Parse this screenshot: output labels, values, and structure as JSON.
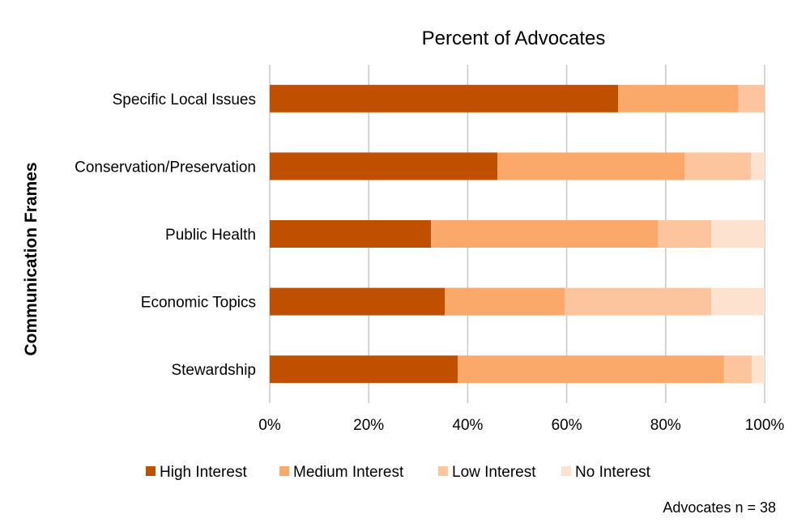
{
  "chart_data": {
    "type": "bar",
    "orientation": "horizontal",
    "stacked": true,
    "title": "Percent of Advocates",
    "xlabel": "",
    "ylabel": "Communication Frames",
    "xlim": [
      0,
      100
    ],
    "x_ticks": [
      "0%",
      "20%",
      "40%",
      "60%",
      "80%",
      "100%"
    ],
    "grid": true,
    "legend_position": "bottom",
    "categories": [
      "Specific Local Issues",
      "Conservation/Preservation",
      "Public Health",
      "Economic Topics",
      "Stewardship"
    ],
    "series": [
      {
        "name": "High Interest",
        "color": "#C05000",
        "values": [
          70.4,
          46.0,
          32.6,
          35.4,
          38.0
        ]
      },
      {
        "name": "Medium Interest",
        "color": "#FBA96A",
        "values": [
          24.2,
          37.8,
          45.8,
          24.2,
          53.8
        ]
      },
      {
        "name": "Low Interest",
        "color": "#FCC59E",
        "values": [
          5.4,
          13.4,
          10.8,
          29.6,
          5.6
        ]
      },
      {
        "name": "No Interest",
        "color": "#FCE2CF",
        "values": [
          0.0,
          2.8,
          10.8,
          10.8,
          2.6
        ]
      }
    ],
    "annotation": "Advocates n = 38"
  }
}
